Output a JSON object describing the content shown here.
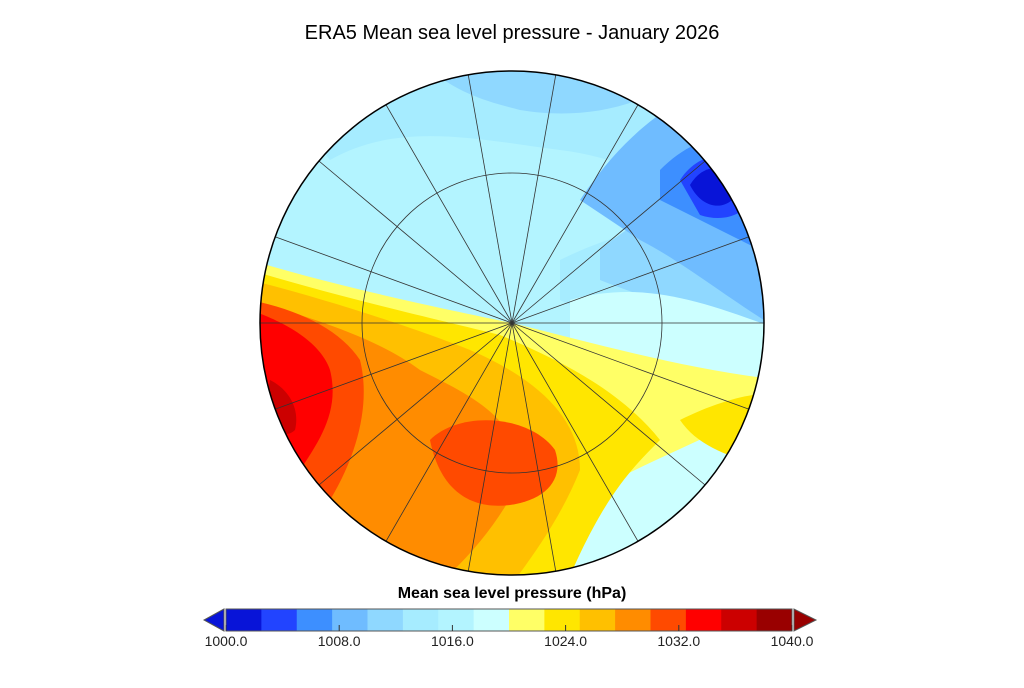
{
  "title": "ERA5 Mean sea level pressure - January 2026",
  "colorbar": {
    "label": "Mean sea level pressure (hPa)",
    "min": 1000,
    "max": 1040,
    "step": 2.5,
    "ticks": [
      "1000.0",
      "1008.0",
      "1016.0",
      "1024.0",
      "1032.0",
      "1040.0"
    ],
    "tick_values": [
      1000,
      1008,
      1016,
      1024,
      1032,
      1040
    ],
    "colors": [
      "#0814d8",
      "#2244ff",
      "#3d8fff",
      "#6fbcff",
      "#8fd8ff",
      "#a6ecff",
      "#b3f4ff",
      "#ccffff",
      "#ffff66",
      "#ffe600",
      "#ffc000",
      "#ff8c00",
      "#ff4a00",
      "#ff0000",
      "#cc0000",
      "#990000"
    ],
    "under_color": "#0814d8",
    "over_color": "#990000"
  }
}
